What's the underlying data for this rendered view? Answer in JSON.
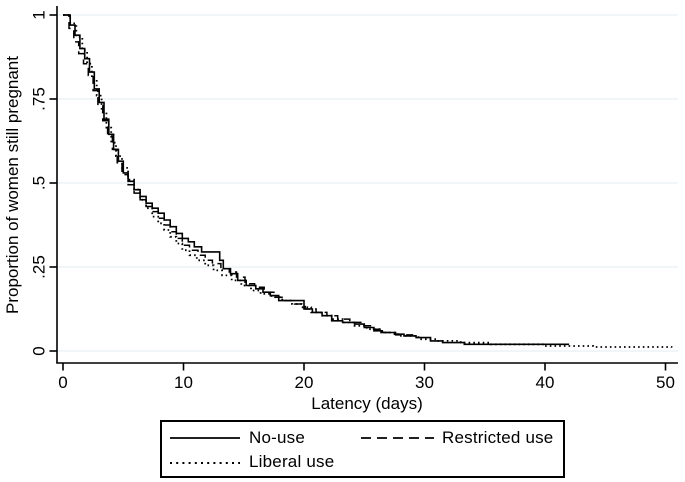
{
  "chart_data": {
    "type": "line",
    "subtype": "kaplan-meier-step",
    "title": "",
    "xlabel": "Latency (days)",
    "ylabel": "Proportion of women still pregnant",
    "xlim": [
      0,
      51.5
    ],
    "ylim": [
      0,
      1
    ],
    "grid": "horizontal-only",
    "legend_position": "bottom-box",
    "colors": {
      "line": "#000000",
      "gridline": "#e7eff4",
      "axis": "#000000",
      "background": "#ffffff"
    },
    "xticks": [
      {
        "label": "0",
        "value": 0
      },
      {
        "label": "10",
        "value": 10
      },
      {
        "label": "20",
        "value": 20
      },
      {
        "label": "30",
        "value": 30
      },
      {
        "label": "40",
        "value": 40
      },
      {
        "label": "50",
        "value": 50
      }
    ],
    "yticks": [
      {
        "label": "1",
        "value": 1
      },
      {
        "label": ".75",
        "value": 0.75
      },
      {
        "label": ".5",
        "value": 0.5
      },
      {
        "label": ".25",
        "value": 0.25
      },
      {
        "label": "0",
        "value": 0
      }
    ],
    "series": [
      {
        "name": "No-use",
        "style": "solid",
        "points": [
          [
            0,
            1.0
          ],
          [
            0.6,
            0.97
          ],
          [
            1.0,
            0.94
          ],
          [
            1.4,
            0.9
          ],
          [
            1.8,
            0.87
          ],
          [
            2.2,
            0.83
          ],
          [
            2.6,
            0.78
          ],
          [
            3.0,
            0.74
          ],
          [
            3.4,
            0.69
          ],
          [
            3.8,
            0.645
          ],
          [
            4.2,
            0.6
          ],
          [
            4.6,
            0.565
          ],
          [
            5.0,
            0.53
          ],
          [
            5.4,
            0.505
          ],
          [
            5.9,
            0.48
          ],
          [
            6.4,
            0.46
          ],
          [
            6.9,
            0.44
          ],
          [
            7.4,
            0.425
          ],
          [
            7.9,
            0.41
          ],
          [
            8.4,
            0.39
          ],
          [
            8.9,
            0.37
          ],
          [
            9.4,
            0.35
          ],
          [
            9.9,
            0.335
          ],
          [
            10.4,
            0.325
          ],
          [
            10.9,
            0.31
          ],
          [
            11.5,
            0.295
          ],
          [
            13.0,
            0.27
          ],
          [
            13.3,
            0.245
          ],
          [
            13.9,
            0.23
          ],
          [
            14.5,
            0.21
          ],
          [
            15.2,
            0.195
          ],
          [
            16.0,
            0.185
          ],
          [
            16.6,
            0.175
          ],
          [
            17.2,
            0.165
          ],
          [
            17.9,
            0.15
          ],
          [
            20.0,
            0.125
          ],
          [
            20.7,
            0.115
          ],
          [
            21.5,
            0.105
          ],
          [
            22.3,
            0.09
          ],
          [
            23.2,
            0.085
          ],
          [
            24.2,
            0.08
          ],
          [
            25.0,
            0.07
          ],
          [
            25.8,
            0.06
          ],
          [
            26.5,
            0.055
          ],
          [
            27.5,
            0.05
          ],
          [
            28.3,
            0.045
          ],
          [
            29.3,
            0.04
          ],
          [
            30.5,
            0.03
          ],
          [
            31.5,
            0.025
          ],
          [
            33.3,
            0.02
          ],
          [
            42.0,
            0.02
          ]
        ]
      },
      {
        "name": "Restricted use",
        "style": "dashed",
        "points": [
          [
            0,
            1.0
          ],
          [
            0.5,
            0.96
          ],
          [
            0.9,
            0.92
          ],
          [
            1.3,
            0.885
          ],
          [
            1.7,
            0.855
          ],
          [
            2.1,
            0.82
          ],
          [
            2.5,
            0.775
          ],
          [
            2.9,
            0.73
          ],
          [
            3.3,
            0.685
          ],
          [
            3.7,
            0.64
          ],
          [
            4.1,
            0.6
          ],
          [
            4.5,
            0.56
          ],
          [
            4.9,
            0.525
          ],
          [
            5.4,
            0.495
          ],
          [
            5.9,
            0.47
          ],
          [
            6.4,
            0.45
          ],
          [
            6.9,
            0.43
          ],
          [
            7.4,
            0.415
          ],
          [
            7.9,
            0.395
          ],
          [
            8.4,
            0.375
          ],
          [
            8.9,
            0.355
          ],
          [
            9.4,
            0.335
          ],
          [
            9.9,
            0.315
          ],
          [
            10.5,
            0.3
          ],
          [
            11.2,
            0.285
          ],
          [
            11.8,
            0.27
          ],
          [
            12.4,
            0.26
          ],
          [
            13.1,
            0.245
          ],
          [
            13.8,
            0.235
          ],
          [
            14.4,
            0.22
          ],
          [
            15.1,
            0.2
          ],
          [
            15.9,
            0.19
          ],
          [
            16.7,
            0.175
          ],
          [
            17.5,
            0.16
          ],
          [
            18.3,
            0.15
          ],
          [
            19.2,
            0.14
          ],
          [
            20.1,
            0.125
          ],
          [
            21.0,
            0.115
          ],
          [
            21.9,
            0.105
          ],
          [
            22.8,
            0.095
          ],
          [
            23.8,
            0.085
          ],
          [
            24.8,
            0.075
          ],
          [
            25.7,
            0.065
          ],
          [
            26.6,
            0.055
          ],
          [
            27.6,
            0.048
          ],
          [
            29.0,
            0.04
          ]
        ]
      },
      {
        "name": "Liberal use",
        "style": "dotted",
        "points": [
          [
            0,
            1.0
          ],
          [
            0.6,
            0.975
          ],
          [
            1.1,
            0.935
          ],
          [
            1.6,
            0.895
          ],
          [
            2.0,
            0.855
          ],
          [
            2.4,
            0.81
          ],
          [
            2.8,
            0.76
          ],
          [
            3.2,
            0.71
          ],
          [
            3.6,
            0.665
          ],
          [
            4.0,
            0.62
          ],
          [
            4.4,
            0.58
          ],
          [
            4.9,
            0.545
          ],
          [
            5.4,
            0.51
          ],
          [
            5.9,
            0.48
          ],
          [
            6.4,
            0.45
          ],
          [
            6.9,
            0.425
          ],
          [
            7.4,
            0.4
          ],
          [
            7.9,
            0.38
          ],
          [
            8.4,
            0.36
          ],
          [
            8.9,
            0.34
          ],
          [
            9.4,
            0.32
          ],
          [
            9.9,
            0.3
          ],
          [
            10.5,
            0.285
          ],
          [
            11.1,
            0.27
          ],
          [
            11.8,
            0.255
          ],
          [
            12.5,
            0.24
          ],
          [
            13.2,
            0.225
          ],
          [
            14.0,
            0.21
          ],
          [
            14.8,
            0.195
          ],
          [
            15.6,
            0.18
          ],
          [
            16.4,
            0.17
          ],
          [
            17.3,
            0.16
          ],
          [
            18.2,
            0.15
          ],
          [
            19.0,
            0.14
          ],
          [
            19.8,
            0.13
          ],
          [
            20.6,
            0.115
          ],
          [
            21.4,
            0.105
          ],
          [
            22.3,
            0.095
          ],
          [
            23.2,
            0.085
          ],
          [
            24.2,
            0.075
          ],
          [
            25.2,
            0.065
          ],
          [
            26.4,
            0.055
          ],
          [
            27.8,
            0.045
          ],
          [
            29.5,
            0.035
          ],
          [
            31.0,
            0.03
          ],
          [
            33.0,
            0.025
          ],
          [
            35.5,
            0.02
          ],
          [
            40.0,
            0.015
          ],
          [
            44.0,
            0.012
          ],
          [
            50.5,
            0.01
          ]
        ]
      }
    ]
  },
  "legend": {
    "row1_item1": "No-use",
    "row1_item2": "Restricted use",
    "row2_item1": "Liberal use"
  }
}
